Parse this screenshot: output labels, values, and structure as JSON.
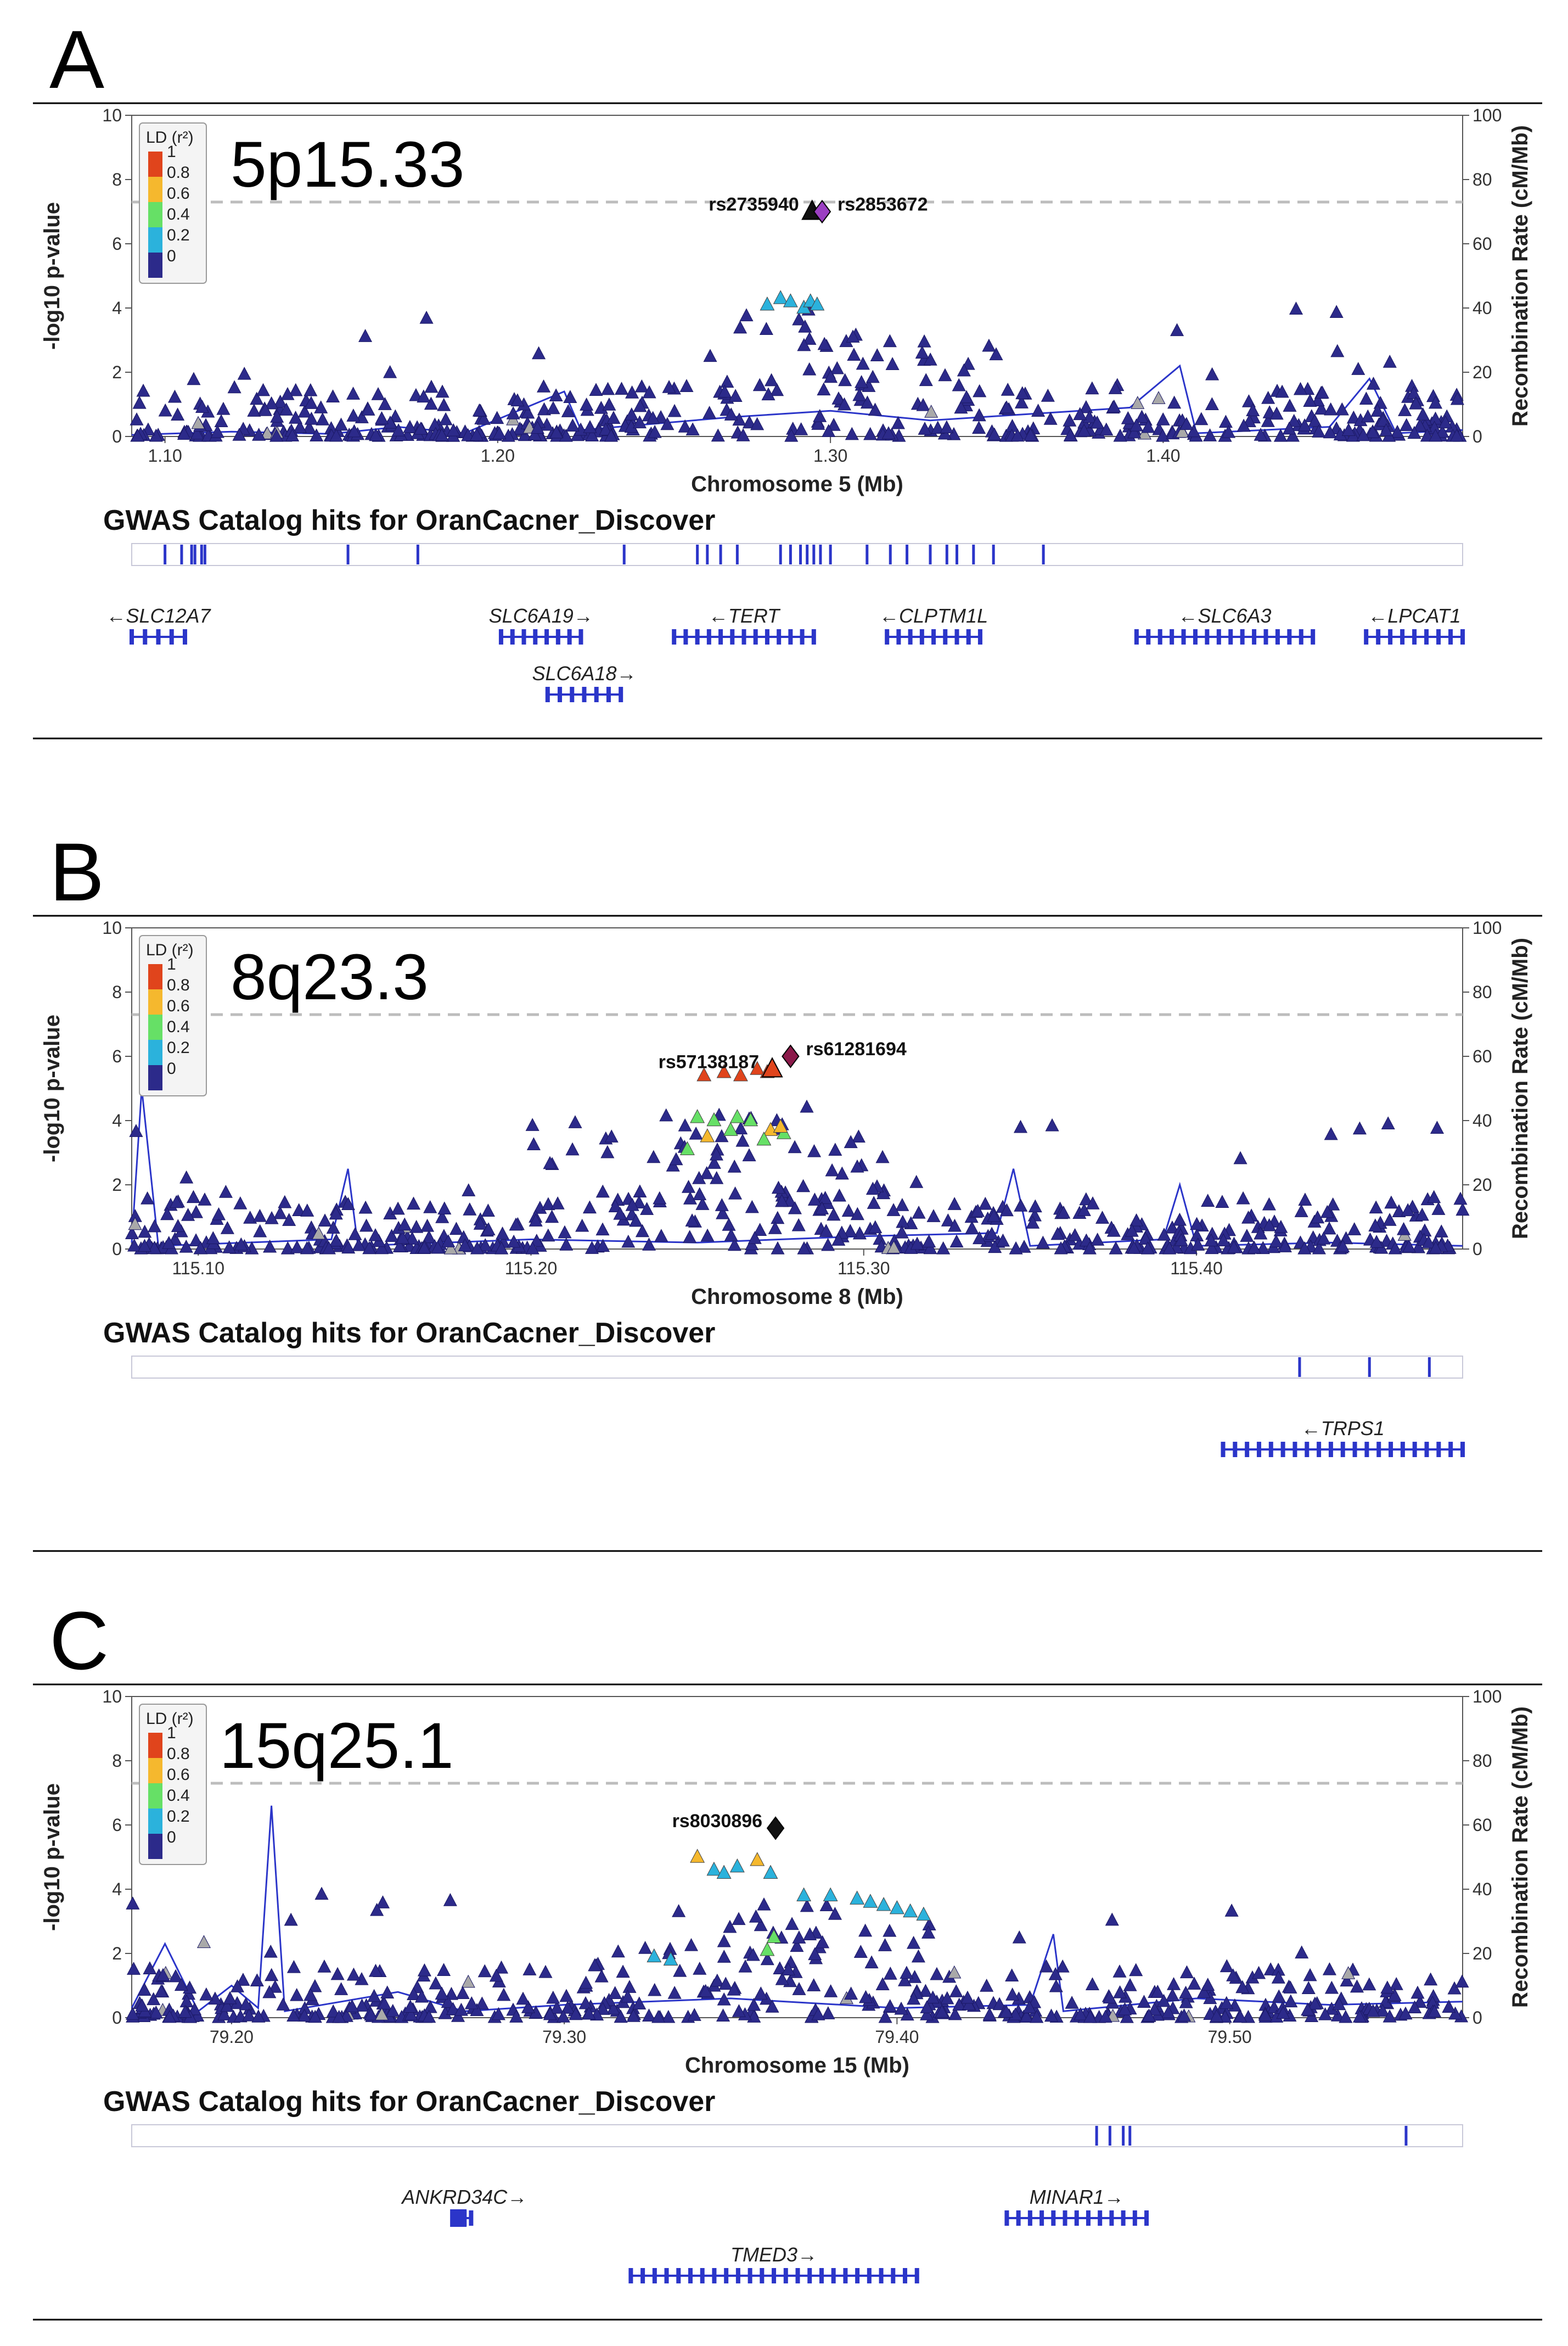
{
  "ld_colors": [
    "#2c2a8a",
    "#2bb2dc",
    "#66e066",
    "#f5b82e",
    "#e0441c",
    "#d01c1c"
  ],
  "legend": {
    "title": "LD (r²)",
    "labels": [
      "1",
      "0.8",
      "0.6",
      "0.4",
      "0.2",
      "0"
    ]
  },
  "panels": [
    {
      "letter": "A",
      "region": "5p15.33",
      "y_label": "-log10 p-value",
      "y_right_label": "Recombination Rate (cM/Mb)",
      "y_ticks": [
        "0",
        "2",
        "4",
        "6",
        "8",
        "10"
      ],
      "y_right_ticks": [
        "0",
        "20",
        "40",
        "60",
        "80",
        "100"
      ],
      "x_label": "Chromosome 5 (Mb)",
      "x_range": [
        1.09,
        1.49
      ],
      "x_ticks": [
        {
          "v": 1.1,
          "t": "1.10"
        },
        {
          "v": 1.2,
          "t": "1.20"
        },
        {
          "v": 1.3,
          "t": "1.30"
        },
        {
          "v": 1.4,
          "t": "1.40"
        }
      ],
      "gwas_title": "GWAS Catalog hits for OranCacner_Discover",
      "gwas_hits": [
        1.1,
        1.105,
        1.108,
        1.109,
        1.111,
        1.112,
        1.155,
        1.176,
        1.238,
        1.26,
        1.263,
        1.267,
        1.272,
        1.285,
        1.288,
        1.291,
        1.293,
        1.295,
        1.297,
        1.3,
        1.311,
        1.318,
        1.323,
        1.33,
        1.335,
        1.338,
        1.343,
        1.349,
        1.364
      ],
      "lead_snps": [
        {
          "name": "rs2735940",
          "x": 1.2945,
          "y": 7.0,
          "color": "#111111",
          "shape": "triangle",
          "label_side": "left"
        },
        {
          "name": "rs2853672",
          "x": 1.2975,
          "y": 7.0,
          "color": "#9b3fc2",
          "shape": "diamond",
          "label_side": "right"
        }
      ],
      "peak": {
        "center": 1.288,
        "width": 0.08,
        "height": 3.8,
        "colored_x": [
          1.281,
          1.285,
          1.288,
          1.292,
          1.294,
          1.296
        ],
        "colored_y": [
          4.1,
          4.3,
          4.2,
          4.0,
          4.2,
          4.1
        ]
      },
      "shoulder": {
        "from": 1.3,
        "to": 1.355,
        "height": 3.0
      },
      "recomb": [
        [
          1.09,
          0.5
        ],
        [
          1.12,
          1.5
        ],
        [
          1.15,
          0.8
        ],
        [
          1.17,
          3
        ],
        [
          1.19,
          1
        ],
        [
          1.22,
          14
        ],
        [
          1.225,
          2
        ],
        [
          1.27,
          6
        ],
        [
          1.3,
          8
        ],
        [
          1.33,
          5
        ],
        [
          1.36,
          7
        ],
        [
          1.39,
          9
        ],
        [
          1.405,
          22
        ],
        [
          1.41,
          1
        ],
        [
          1.45,
          3
        ],
        [
          1.462,
          18
        ],
        [
          1.47,
          1
        ],
        [
          1.49,
          2
        ]
      ],
      "genes": [
        {
          "name": "←SLC12A7",
          "start": 1.09,
          "end": 1.106,
          "row": 0
        },
        {
          "name": "SLC6A19→",
          "start": 1.201,
          "end": 1.225,
          "row": 0
        },
        {
          "name": "SLC6A18→",
          "start": 1.215,
          "end": 1.237,
          "row": 1
        },
        {
          "name": "←TERT",
          "start": 1.253,
          "end": 1.295,
          "row": 0
        },
        {
          "name": "←CLPTM1L",
          "start": 1.317,
          "end": 1.345,
          "row": 0
        },
        {
          "name": "←SLC6A3",
          "start": 1.392,
          "end": 1.445,
          "row": 0
        },
        {
          "name": "←LPCAT1",
          "start": 1.461,
          "end": 1.49,
          "row": 0
        }
      ]
    },
    {
      "letter": "B",
      "region": "8q23.3",
      "y_label": "-log10 p-value",
      "y_right_label": "Recombination Rate (cM/Mb)",
      "y_ticks": [
        "0",
        "2",
        "4",
        "6",
        "8",
        "10"
      ],
      "y_right_ticks": [
        "0",
        "20",
        "40",
        "60",
        "80",
        "100"
      ],
      "x_label": "Chromosome 8 (Mb)",
      "x_range": [
        115.08,
        115.48
      ],
      "x_ticks": [
        {
          "v": 115.1,
          "t": "115.10"
        },
        {
          "v": 115.2,
          "t": "115.20"
        },
        {
          "v": 115.3,
          "t": "115.30"
        },
        {
          "v": 115.4,
          "t": "115.40"
        }
      ],
      "gwas_title": "GWAS Catalog hits for OranCacner_Discover",
      "gwas_hits": [
        115.431,
        115.452,
        115.47
      ],
      "lead_snps": [
        {
          "name": "rs57138187",
          "x": 115.2725,
          "y": 5.6,
          "color": "#e0441c",
          "shape": "triangle",
          "label_side": "left"
        },
        {
          "name": "rs61281694",
          "x": 115.278,
          "y": 6.0,
          "color": "#8b1a4a",
          "shape": "diamond",
          "label_side": "right"
        }
      ],
      "peak": {
        "center": 115.265,
        "width": 0.09,
        "height": 4.4,
        "colored_x": [
          115.252,
          115.258,
          115.263,
          115.268,
          115.271,
          115.25,
          115.255,
          115.262,
          115.266,
          115.272,
          115.276,
          115.247,
          115.253,
          115.26,
          115.27,
          115.275
        ],
        "colored_y": [
          5.4,
          5.5,
          5.4,
          5.6,
          5.5,
          4.1,
          4.0,
          4.1,
          4.0,
          3.7,
          3.6,
          3.1,
          3.5,
          3.7,
          3.4,
          3.8
        ]
      },
      "shoulder": {
        "from": 115.2,
        "to": 115.3,
        "height": 4.5
      },
      "recomb": [
        [
          115.08,
          2
        ],
        [
          115.083,
          50
        ],
        [
          115.088,
          1
        ],
        [
          115.14,
          3
        ],
        [
          115.145,
          25
        ],
        [
          115.148,
          1
        ],
        [
          115.2,
          3
        ],
        [
          115.25,
          2
        ],
        [
          115.3,
          4
        ],
        [
          115.34,
          5
        ],
        [
          115.345,
          25
        ],
        [
          115.35,
          1
        ],
        [
          115.39,
          3
        ],
        [
          115.395,
          20
        ],
        [
          115.4,
          1
        ],
        [
          115.44,
          2
        ],
        [
          115.48,
          1
        ]
      ],
      "genes": [
        {
          "name": "←TRPS1",
          "start": 115.408,
          "end": 115.48,
          "row": 0
        }
      ]
    },
    {
      "letter": "C",
      "region": "15q25.1",
      "y_label": "-log10 p-value",
      "y_right_label": "Recombination Rate (cM/Mb)",
      "y_ticks": [
        "0",
        "2",
        "4",
        "6",
        "8",
        "10"
      ],
      "y_right_ticks": [
        "0",
        "20",
        "40",
        "60",
        "80",
        "100"
      ],
      "x_label": "Chromosome 15 (Mb)",
      "x_range": [
        79.17,
        79.57
      ],
      "x_ticks": [
        {
          "v": 79.2,
          "t": "79.20"
        },
        {
          "v": 79.3,
          "t": "79.30"
        },
        {
          "v": 79.4,
          "t": "79.40"
        },
        {
          "v": 79.5,
          "t": "79.50"
        }
      ],
      "gwas_title": "GWAS Catalog hits for OranCacner_Discover",
      "gwas_hits": [
        79.46,
        79.464,
        79.468,
        79.47,
        79.553
      ],
      "lead_snps": [
        {
          "name": "rs8030896",
          "x": 79.3635,
          "y": 5.9,
          "color": "#111111",
          "shape": "diamond",
          "label_side": "left"
        }
      ],
      "peak": {
        "center": 79.355,
        "width": 0.11,
        "height": 3.2,
        "colored_x": [
          79.34,
          79.345,
          79.348,
          79.352,
          79.358,
          79.362,
          79.372,
          79.38,
          79.388,
          79.392,
          79.396,
          79.4,
          79.404,
          79.408,
          79.363,
          79.361,
          79.327,
          79.332
        ],
        "colored_y": [
          5.0,
          4.6,
          4.5,
          4.7,
          4.9,
          4.5,
          3.8,
          3.8,
          3.7,
          3.6,
          3.5,
          3.4,
          3.3,
          3.2,
          2.5,
          2.1,
          1.9,
          1.8
        ]
      },
      "shoulder": {
        "from": 79.33,
        "to": 79.41,
        "height": 3.6
      },
      "recomb": [
        [
          79.17,
          3
        ],
        [
          79.18,
          23
        ],
        [
          79.19,
          2
        ],
        [
          79.2,
          10
        ],
        [
          79.208,
          3
        ],
        [
          79.212,
          66
        ],
        [
          79.216,
          2
        ],
        [
          79.25,
          8
        ],
        [
          79.27,
          2
        ],
        [
          79.3,
          4
        ],
        [
          79.35,
          6
        ],
        [
          79.4,
          3
        ],
        [
          79.44,
          4
        ],
        [
          79.447,
          26
        ],
        [
          79.45,
          2
        ],
        [
          79.49,
          6
        ],
        [
          79.53,
          4
        ],
        [
          79.57,
          5
        ]
      ],
      "genes": [
        {
          "name": "ANKRD34C→",
          "start": 79.268,
          "end": 79.272,
          "row": 0
        },
        {
          "name": "MINAR1→",
          "start": 79.433,
          "end": 79.475,
          "row": 0
        },
        {
          "name": "TMED3→",
          "start": 79.32,
          "end": 79.406,
          "row": 1
        }
      ]
    }
  ]
}
